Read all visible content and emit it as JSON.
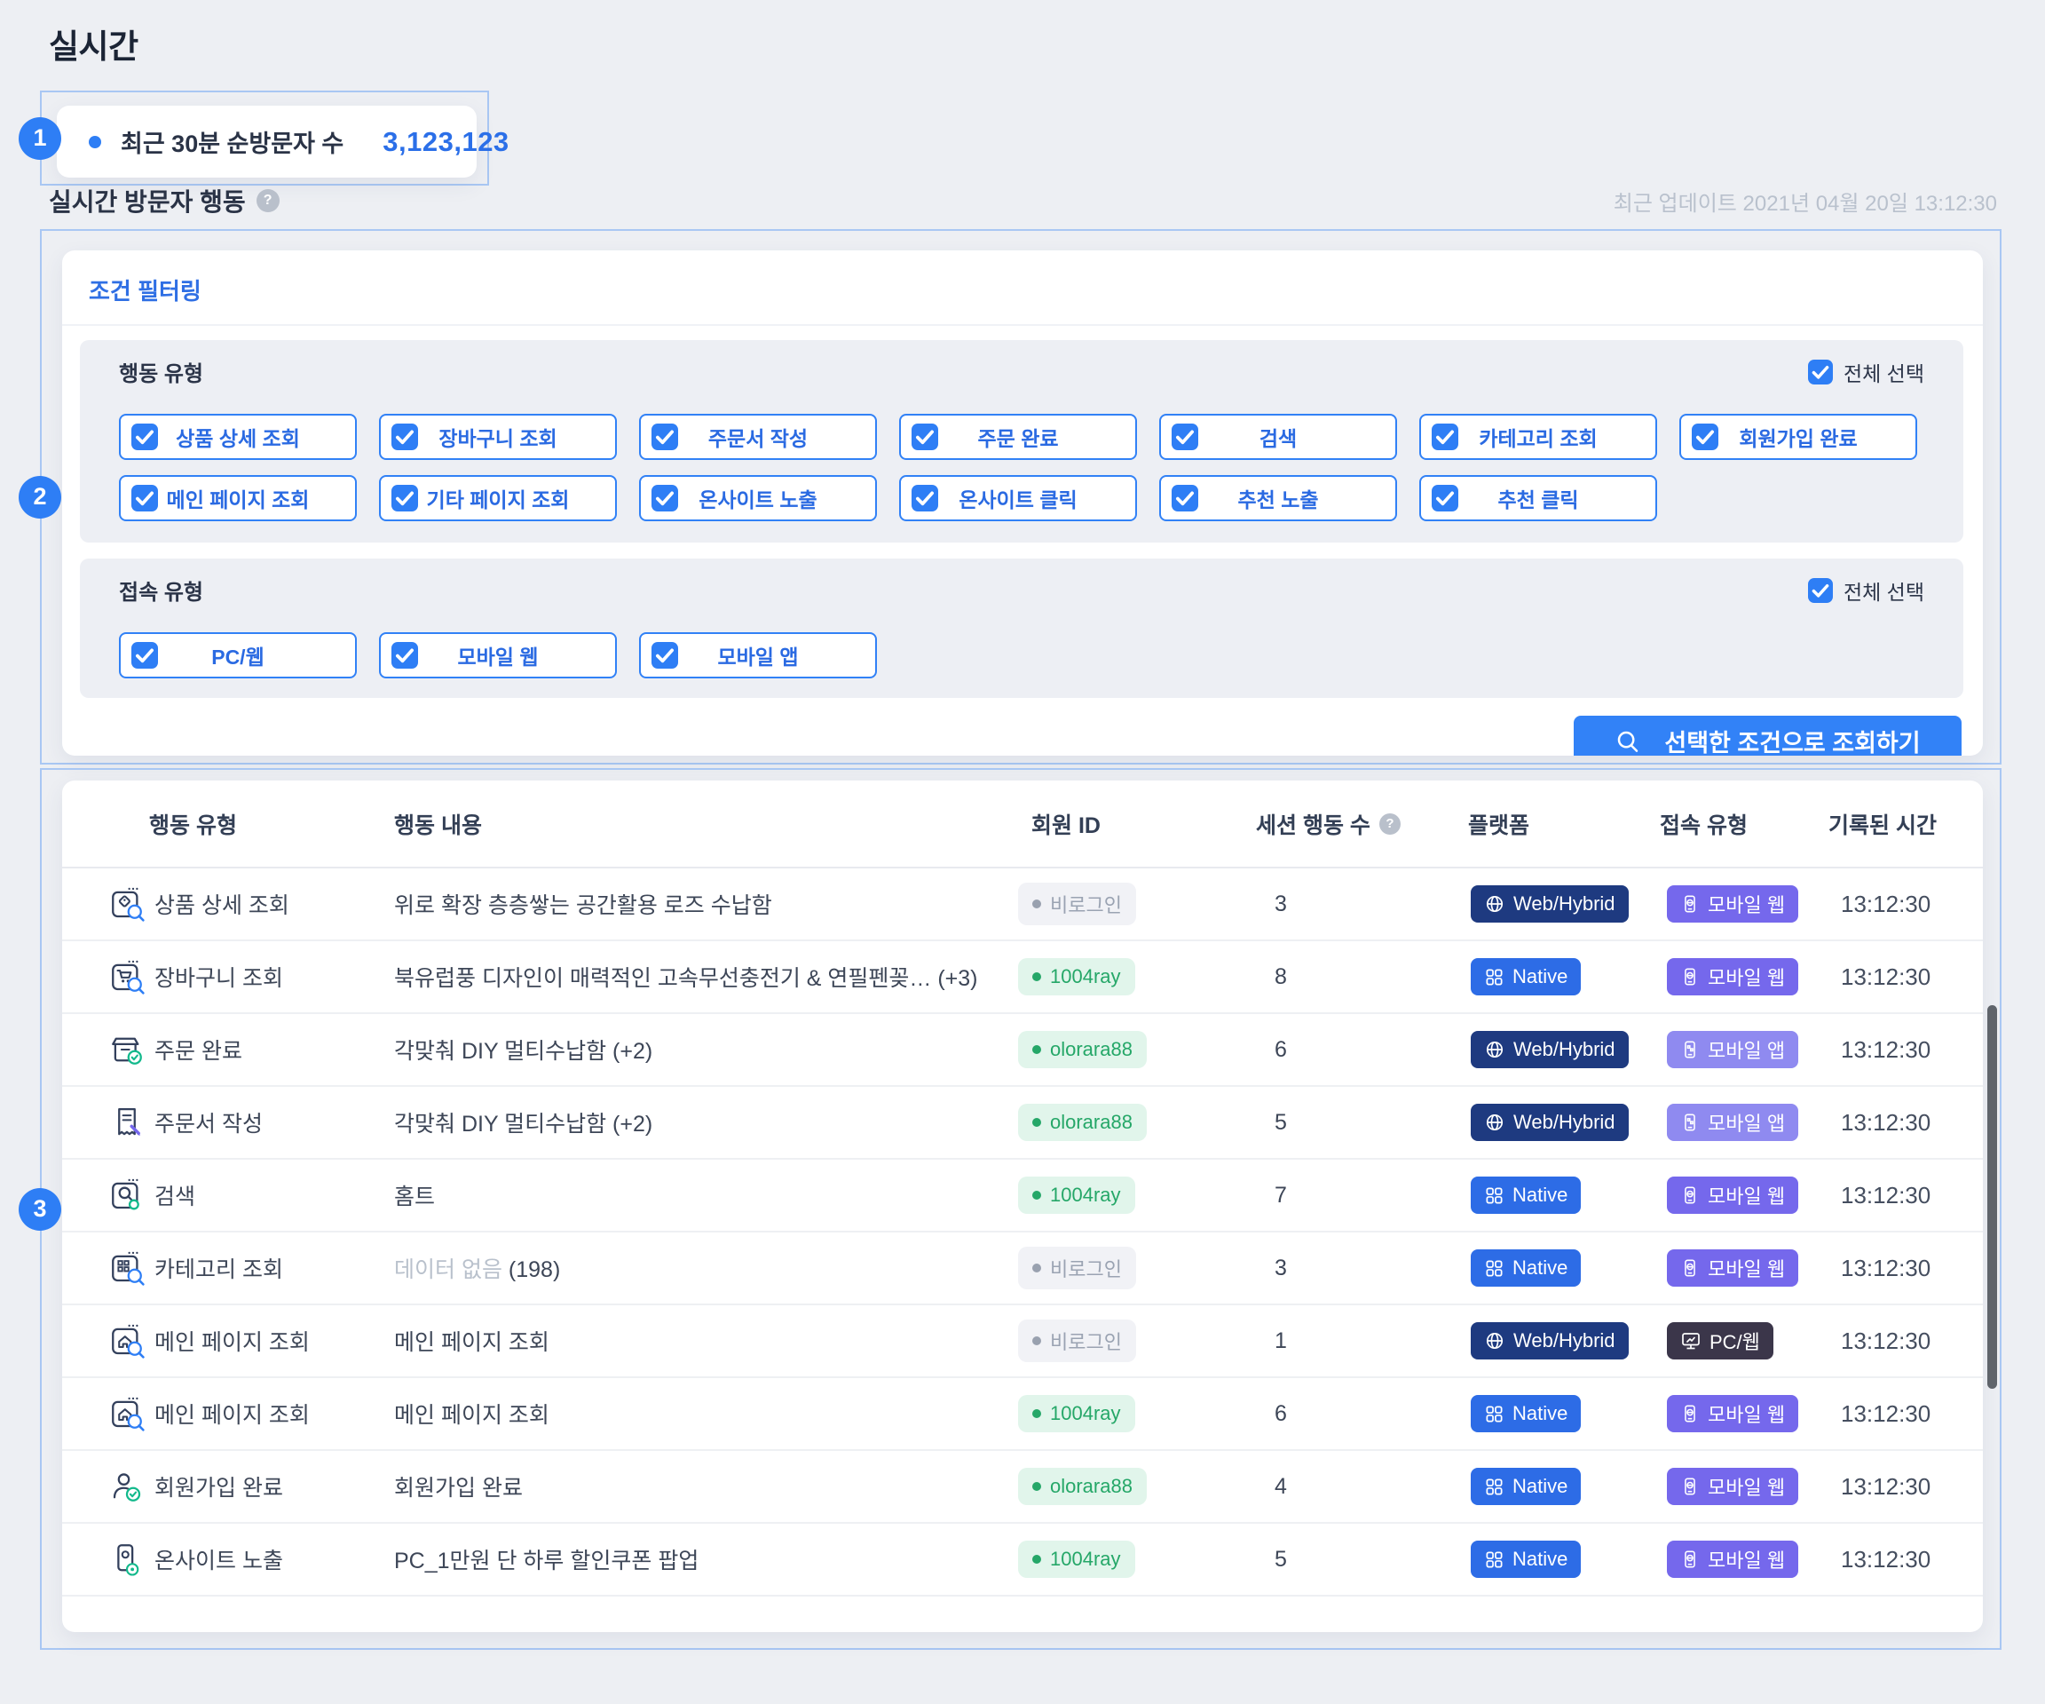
{
  "page": {
    "title": "실시간"
  },
  "annotations": {
    "badge1": "1",
    "badge2": "2",
    "badge3": "3"
  },
  "visitor_card": {
    "label": "최근 30분 순방문자 수",
    "value": "3,123,123"
  },
  "section": {
    "title": "실시간 방문자 행동",
    "help": "?",
    "updated": "최근 업데이트 2021년 04월 20일 13:12:30"
  },
  "filter": {
    "title": "조건 필터링",
    "select_all_label": "전체 선택",
    "groups": [
      {
        "label": "행동 유형",
        "rows": [
          [
            "상품 상세 조회",
            "장바구니 조회",
            "주문서 작성",
            "주문 완료",
            "검색",
            "카테고리 조회",
            "회원가입 완료"
          ],
          [
            "메인 페이지 조회",
            "기타 페이지 조회",
            "온사이트 노출",
            "온사이트 클릭",
            "추천 노출",
            "추천 클릭"
          ]
        ]
      },
      {
        "label": "접속 유형",
        "rows": [
          [
            "PC/웹",
            "모바일 웹",
            "모바일 앱"
          ]
        ]
      }
    ],
    "search_button": "선택한 조건으로 조회하기"
  },
  "table": {
    "headers": [
      "행동 유형",
      "행동 내용",
      "회원 ID",
      "세션 행동 수",
      "플랫폼",
      "접속 유형",
      "기록된 시간"
    ],
    "session_help": "?",
    "rows": [
      {
        "icon": "product-detail",
        "type": "상품 상세 조회",
        "content": "위로 확장 층층쌓는 공간활용 로즈 수납함",
        "member": {
          "label": "비로그인",
          "kind": "guest"
        },
        "sessions": "3",
        "platform": {
          "label": "Web/Hybrid",
          "kind": "webhybrid"
        },
        "access": {
          "label": "모바일 웹",
          "kind": "mobile-web"
        },
        "time": "13:12:30"
      },
      {
        "icon": "cart-view",
        "type": "장바구니 조회",
        "content": "북유럽풍 디자인이 매력적인 고속무선충전기 & 연필펜꽂… (+3)",
        "member": {
          "label": "1004ray",
          "kind": "member"
        },
        "sessions": "8",
        "platform": {
          "label": "Native",
          "kind": "native"
        },
        "access": {
          "label": "모바일 웹",
          "kind": "mobile-web"
        },
        "time": "13:12:30"
      },
      {
        "icon": "order-complete",
        "type": "주문 완료",
        "content": "각맞춰 DIY 멀티수납함 (+2)",
        "member": {
          "label": "olorara88",
          "kind": "member"
        },
        "sessions": "6",
        "platform": {
          "label": "Web/Hybrid",
          "kind": "webhybrid"
        },
        "access": {
          "label": "모바일 앱",
          "kind": "mobile-app"
        },
        "time": "13:12:30"
      },
      {
        "icon": "order-form",
        "type": "주문서 작성",
        "content": "각맞춰 DIY 멀티수납함 (+2)",
        "member": {
          "label": "olorara88",
          "kind": "member"
        },
        "sessions": "5",
        "platform": {
          "label": "Web/Hybrid",
          "kind": "webhybrid"
        },
        "access": {
          "label": "모바일 앱",
          "kind": "mobile-app"
        },
        "time": "13:12:30"
      },
      {
        "icon": "search-action",
        "type": "검색",
        "content": "홈트",
        "member": {
          "label": "1004ray",
          "kind": "member"
        },
        "sessions": "7",
        "platform": {
          "label": "Native",
          "kind": "native"
        },
        "access": {
          "label": "모바일 웹",
          "kind": "mobile-web"
        },
        "time": "13:12:30"
      },
      {
        "icon": "category-view",
        "type": "카테고리 조회",
        "content_muted": "데이터 없음",
        "content": "(198)",
        "member": {
          "label": "비로그인",
          "kind": "guest"
        },
        "sessions": "3",
        "platform": {
          "label": "Native",
          "kind": "native"
        },
        "access": {
          "label": "모바일 웹",
          "kind": "mobile-web"
        },
        "time": "13:12:30"
      },
      {
        "icon": "main-page",
        "type": "메인 페이지 조회",
        "content": "메인 페이지 조회",
        "member": {
          "label": "비로그인",
          "kind": "guest"
        },
        "sessions": "1",
        "platform": {
          "label": "Web/Hybrid",
          "kind": "webhybrid"
        },
        "access": {
          "label": "PC/웹",
          "kind": "pc-web"
        },
        "time": "13:12:30"
      },
      {
        "icon": "main-page",
        "type": "메인 페이지 조회",
        "content": "메인 페이지 조회",
        "member": {
          "label": "1004ray",
          "kind": "member"
        },
        "sessions": "6",
        "platform": {
          "label": "Native",
          "kind": "native"
        },
        "access": {
          "label": "모바일 웹",
          "kind": "mobile-web"
        },
        "time": "13:12:30"
      },
      {
        "icon": "signup-complete",
        "type": "회원가입 완료",
        "content": "회원가입 완료",
        "member": {
          "label": "olorara88",
          "kind": "member"
        },
        "sessions": "4",
        "platform": {
          "label": "Native",
          "kind": "native"
        },
        "access": {
          "label": "모바일 웹",
          "kind": "mobile-web"
        },
        "time": "13:12:30"
      },
      {
        "icon": "onsite-expose",
        "type": "온사이트 노출",
        "content": "PC_1만원 단 하루 할인쿠폰 팝업",
        "member": {
          "label": "1004ray",
          "kind": "member"
        },
        "sessions": "5",
        "platform": {
          "label": "Native",
          "kind": "native"
        },
        "access": {
          "label": "모바일 웹",
          "kind": "mobile-web"
        },
        "time": "13:12:30"
      }
    ]
  },
  "colors": {
    "accent": "#2e7ef5",
    "accent_text": "#2a6ae2",
    "button_blue": "#3282f7",
    "platform_webhybrid": "#1e3a80",
    "platform_native": "#2d6ce6",
    "access_mobile_web": "#7568ec",
    "access_mobile_app": "#8f8af0",
    "access_pc_web": "#3b364a",
    "member_green": "#25a768",
    "guest_gray": "#9aa3b2",
    "annotation_border": "#a9c7f3"
  }
}
